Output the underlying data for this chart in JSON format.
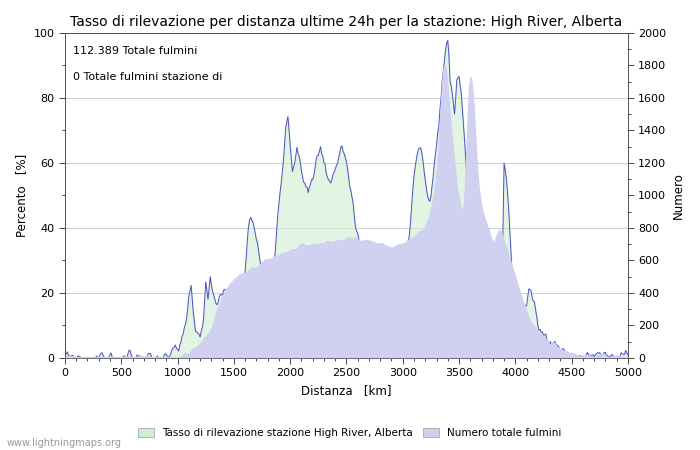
{
  "title": "Tasso di rilevazione per distanza ultime 24h per la stazione: High River, Alberta",
  "xlabel": "Distanza   [km]",
  "ylabel_left": "Percento   [%]",
  "ylabel_right": "Numero",
  "annotation_line1": "112.389 Totale fulmini",
  "annotation_line2": "0 Totale fulmini stazione di",
  "legend_label1": "Tasso di rilevazione stazione High River, Alberta",
  "legend_label2": "Numero totale fulmini",
  "watermark": "www.lightningmaps.org",
  "xlim": [
    0,
    5000
  ],
  "ylim_left": [
    0,
    100
  ],
  "ylim_right": [
    0,
    2000
  ],
  "xticks": [
    0,
    500,
    1000,
    1500,
    2000,
    2500,
    3000,
    3500,
    4000,
    4500,
    5000
  ],
  "yticks_left": [
    0,
    20,
    40,
    60,
    80,
    100
  ],
  "yticks_right": [
    0,
    200,
    400,
    600,
    800,
    1000,
    1200,
    1400,
    1600,
    1800,
    2000
  ],
  "fill_color_rate": "#d0efd0",
  "fill_color_count": "#d0d0f0",
  "line_color": "#5050c8",
  "bg_color": "#ffffff",
  "grid_color": "#aaaaaa",
  "title_fontsize": 10,
  "label_fontsize": 8.5,
  "tick_fontsize": 8,
  "annotation_fontsize": 8
}
